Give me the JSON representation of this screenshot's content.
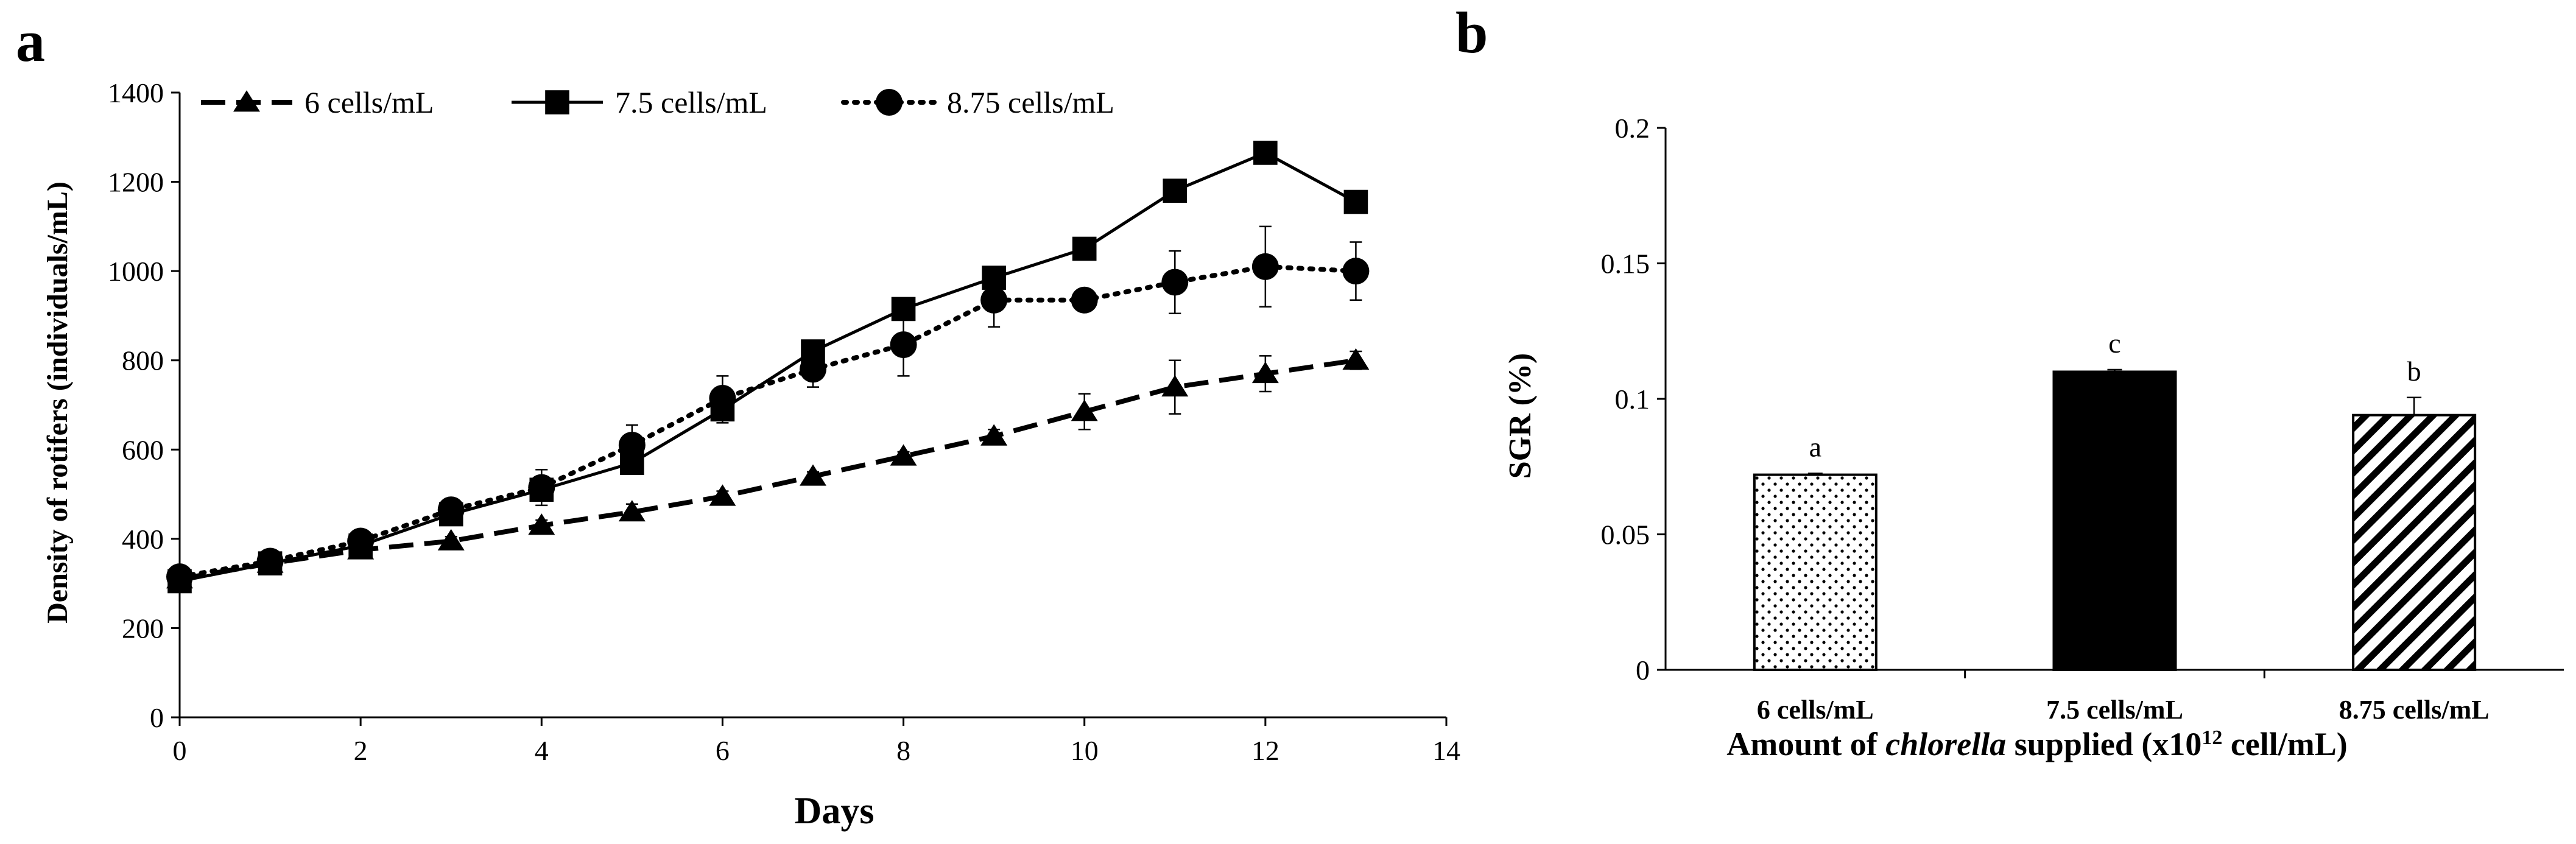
{
  "chart_data": [
    {
      "panel": "a",
      "type": "line",
      "xlabel": "Days",
      "ylabel": "Density of rotifers (individuals/mL)",
      "xlim": [
        0,
        14
      ],
      "ylim": [
        0,
        1400
      ],
      "xticks": [
        0,
        2,
        4,
        6,
        8,
        10,
        12,
        14
      ],
      "yticks": [
        0,
        200,
        400,
        600,
        800,
        1000,
        1200,
        1400
      ],
      "grid": false,
      "legend_position": "top",
      "series": [
        {
          "name": "6 cells/mL",
          "marker": "triangle",
          "line_style": "dashed",
          "x": [
            0,
            1,
            2,
            3,
            4,
            5,
            6,
            7,
            8,
            9,
            10,
            11,
            12,
            13
          ],
          "values": [
            310,
            345,
            375,
            395,
            430,
            460,
            495,
            540,
            585,
            630,
            685,
            740,
            770,
            800
          ],
          "errors": [
            10,
            10,
            10,
            10,
            12,
            18,
            12,
            10,
            10,
            15,
            40,
            60,
            40,
            20
          ]
        },
        {
          "name": "7.5 cells/mL",
          "marker": "square",
          "line_style": "solid",
          "x": [
            0,
            1,
            2,
            3,
            4,
            5,
            6,
            7,
            8,
            9,
            10,
            11,
            12,
            13
          ],
          "values": [
            305,
            345,
            385,
            455,
            510,
            570,
            690,
            820,
            915,
            985,
            1050,
            1180,
            1265,
            1155
          ],
          "errors": [
            10,
            10,
            10,
            10,
            15,
            15,
            30,
            15,
            10,
            15,
            15,
            10,
            10,
            10
          ]
        },
        {
          "name": "8.75 cells/mL",
          "marker": "circle",
          "line_style": "dotted",
          "x": [
            0,
            1,
            2,
            3,
            4,
            5,
            6,
            7,
            8,
            9,
            10,
            11,
            12,
            13
          ],
          "values": [
            315,
            350,
            395,
            465,
            515,
            610,
            715,
            780,
            835,
            935,
            935,
            975,
            1010,
            1000
          ],
          "errors": [
            10,
            10,
            10,
            10,
            40,
            45,
            50,
            40,
            70,
            60,
            10,
            70,
            90,
            65
          ]
        }
      ]
    },
    {
      "panel": "b",
      "type": "bar",
      "ylabel": "SGR (%)",
      "xlabel": {
        "prefix": "Amount of ",
        "italic": "chlorella",
        "middle": " supplied (x10",
        "sup": "12",
        "suffix": " cell/mL)"
      },
      "ylim": [
        0,
        0.2
      ],
      "yticks": [
        "0",
        "0.05",
        "0.1",
        "0.15",
        "0.2"
      ],
      "grid": false,
      "categories": [
        "6 cells/mL",
        "7.5 cells/mL",
        "8.75 cells/mL"
      ],
      "values": [
        0.072,
        0.11,
        0.094
      ],
      "errors": [
        0.0005,
        0.0008,
        0.0065
      ],
      "labels": [
        "a",
        "c",
        "b"
      ],
      "patterns": [
        "dots",
        "solid",
        "diagonal"
      ]
    }
  ]
}
